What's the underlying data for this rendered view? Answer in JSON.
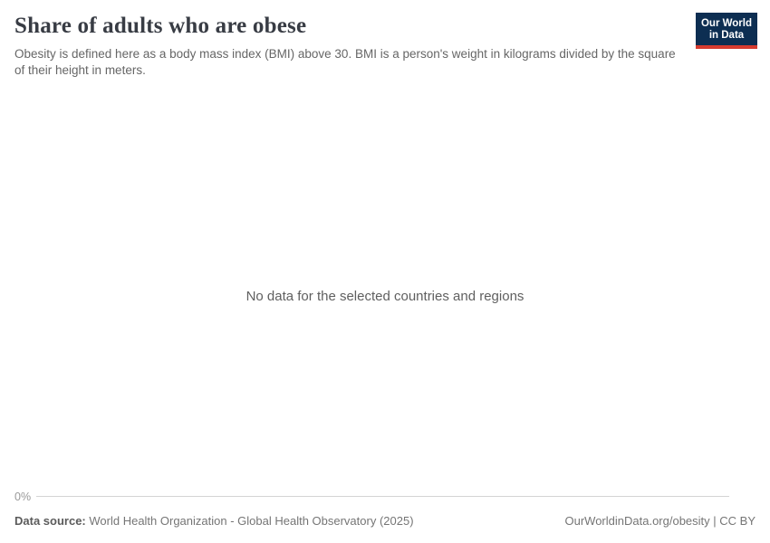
{
  "header": {
    "title": "Share of adults who are obese",
    "subtitle": "Obesity is defined here as a body mass index (BMI) above 30. BMI is a person's weight in kilograms divided by the square of their height in meters.",
    "logo": {
      "line1": "Our World",
      "line2": "in Data",
      "background_color": "#0d2e52",
      "accent_color": "#d63b2f"
    }
  },
  "chart": {
    "no_data_message": "No data for the selected countries and regions",
    "y_axis_tick": "0%",
    "axis_line_color": "#d4d4d4"
  },
  "chart_data": {
    "type": "line",
    "title": "Share of adults who are obese",
    "subtitle": "Obesity is defined here as a body mass index (BMI) above 30. BMI is a person's weight in kilograms divided by the square of their height in meters.",
    "series": [],
    "empty_state_message": "No data for the selected countries and regions",
    "ylabel": "",
    "xlabel": "",
    "y_axis": {
      "tick_labels": [
        "0%"
      ],
      "ylim_min": 0
    },
    "grid": false,
    "legend_position": "none"
  },
  "footer": {
    "data_source_label": "Data source:",
    "data_source_value": "World Health Organization - Global Health Observatory (2025)",
    "citation": "OurWorldinData.org/obesity | CC BY"
  }
}
